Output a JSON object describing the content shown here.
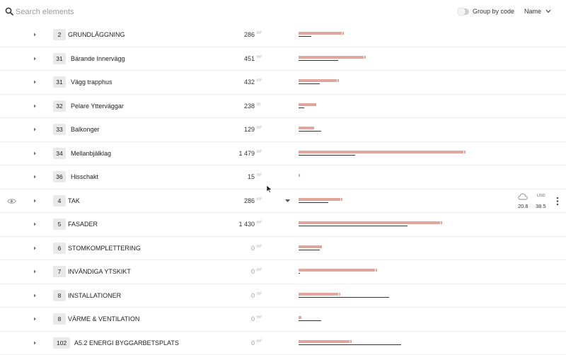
{
  "toolbar": {
    "search_placeholder": "Search elements",
    "search_value": "",
    "group_label": "Group by code",
    "sort_value": "Name"
  },
  "colors": {
    "bar": "#e0a59d",
    "line": "#333333"
  },
  "rows": [
    {
      "code": "2",
      "name": "GRUNDLÄGGNING",
      "qty": "286",
      "unit": "m²",
      "bar": 61,
      "line": 18
    },
    {
      "code": "31",
      "name": "Bärande Innervägg",
      "qty": "451",
      "unit": "m²",
      "bar": 92,
      "line": 56
    },
    {
      "code": "31",
      "name": "Vägg trapphus",
      "qty": "432",
      "unit": "m²",
      "bar": 54,
      "line": 30
    },
    {
      "code": "32",
      "name": "Pelare Ytterväggar",
      "qty": "238",
      "unit": "m",
      "bar": 25,
      "line": 8
    },
    {
      "code": "33",
      "name": "Balkonger",
      "qty": "129",
      "unit": "m²",
      "bar": 22,
      "line": 32
    },
    {
      "code": "34",
      "name": "Mellanbjälklag",
      "qty": "1 479",
      "unit": "m²",
      "bar": 233,
      "line": 80
    },
    {
      "code": "36",
      "name": "Hisschakt",
      "qty": "15",
      "unit": "m²",
      "bar": 2,
      "line": 0
    },
    {
      "code": "4",
      "name": "TAK",
      "qty": "286",
      "unit": "m²",
      "bar": 59,
      "line": 42,
      "selected": true,
      "metric_a": "20.8",
      "usd_label": "USD",
      "metric_b": "38.5"
    },
    {
      "code": "5",
      "name": "FASADER",
      "qty": "1 430",
      "unit": "m²",
      "bar": 200,
      "line": 154
    },
    {
      "code": "6",
      "name": "STOMKOMPLETTERING",
      "qty": "0",
      "unit": "m²",
      "bar": 33,
      "line": 30
    },
    {
      "code": "7",
      "name": "INVÄNDIGA YTSKIKT",
      "qty": "0",
      "unit": "m²",
      "bar": 108,
      "line": 2
    },
    {
      "code": "8",
      "name": "INSTALLATIONER",
      "qty": "0",
      "unit": "m²",
      "bar": 56,
      "line": 128
    },
    {
      "code": "8",
      "name": "VÄRME & VENTILATION",
      "qty": "0",
      "unit": "m²",
      "bar": 4,
      "line": 32
    },
    {
      "code": "102",
      "name": "A5.2 ENERGI BYGGARBETSPLATS",
      "qty": "0",
      "unit": "m²",
      "bar": 72,
      "line": 145
    }
  ]
}
